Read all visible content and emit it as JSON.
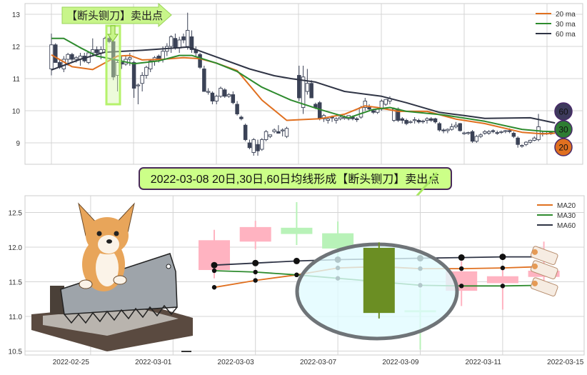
{
  "chart_data": [
    {
      "type": "candlestick",
      "panel": "top",
      "yticks": [
        9,
        10,
        11,
        12,
        13
      ],
      "ylim": [
        8.45,
        13.3
      ],
      "grid": true,
      "legend": "top-right",
      "colors": {
        "down": "#3b4256",
        "up_fill": "#ffffff",
        "up_edge": "#3b4256"
      },
      "candles": [
        [
          11.3,
          12.4,
          11.1,
          12.05
        ],
        [
          12.05,
          12.1,
          11.5,
          11.5
        ],
        [
          11.5,
          11.6,
          11.3,
          11.35
        ],
        [
          11.3,
          11.7,
          11.2,
          11.6
        ],
        [
          11.6,
          11.8,
          11.4,
          11.75
        ],
        [
          11.75,
          11.8,
          11.5,
          11.6
        ],
        [
          11.6,
          11.7,
          11.5,
          11.65
        ],
        [
          11.6,
          11.8,
          11.4,
          11.7
        ],
        [
          11.7,
          11.8,
          11.5,
          11.55
        ],
        [
          11.5,
          11.8,
          11.45,
          11.8
        ],
        [
          11.8,
          12.25,
          11.7,
          11.9
        ],
        [
          11.9,
          12.0,
          11.7,
          11.8
        ],
        [
          11.8,
          12.0,
          11.6,
          11.9
        ],
        [
          11.9,
          12.3,
          11.85,
          12.25
        ],
        [
          12.25,
          12.3,
          12.1,
          12.15
        ],
        [
          12.15,
          12.2,
          10.95,
          11.05
        ],
        [
          11.1,
          11.6,
          10.6,
          11.5
        ],
        [
          11.5,
          11.7,
          11.3,
          11.45
        ],
        [
          11.45,
          11.7,
          11.4,
          11.6
        ],
        [
          11.6,
          11.8,
          11.4,
          11.65
        ],
        [
          11.5,
          11.55,
          10.4,
          10.7
        ],
        [
          10.78,
          10.85,
          10.2,
          10.8
        ],
        [
          10.85,
          11.2,
          10.6,
          11.1
        ],
        [
          11.1,
          11.4,
          11.0,
          11.35
        ],
        [
          11.3,
          11.6,
          11.2,
          11.55
        ],
        [
          11.55,
          11.7,
          11.4,
          11.65
        ],
        [
          11.7,
          11.75,
          11.5,
          11.6
        ],
        [
          11.6,
          12.0,
          11.5,
          11.85
        ],
        [
          11.85,
          12.1,
          11.7,
          12.0
        ],
        [
          12.0,
          12.35,
          11.8,
          12.3
        ],
        [
          12.25,
          12.4,
          11.9,
          11.95
        ],
        [
          11.95,
          12.3,
          11.8,
          12.2
        ],
        [
          12.3,
          12.4,
          12.1,
          12.2
        ],
        [
          12.0,
          13.05,
          11.9,
          12.5
        ],
        [
          12.3,
          12.5,
          11.8,
          11.9
        ],
        [
          11.9,
          12.0,
          11.7,
          11.8
        ],
        [
          11.75,
          11.8,
          11.3,
          11.35
        ],
        [
          11.3,
          11.4,
          10.6,
          10.6
        ],
        [
          10.6,
          10.7,
          10.5,
          10.6
        ],
        [
          10.55,
          10.6,
          10.2,
          10.3
        ],
        [
          10.3,
          10.5,
          10.2,
          10.45
        ],
        [
          10.45,
          10.75,
          10.4,
          10.7
        ],
        [
          10.65,
          10.7,
          10.4,
          10.45
        ],
        [
          10.45,
          10.55,
          10.4,
          10.5
        ],
        [
          10.5,
          10.6,
          10.2,
          10.25
        ],
        [
          10.2,
          10.3,
          9.85,
          9.9
        ],
        [
          9.8,
          9.85,
          9.7,
          9.75
        ],
        [
          9.55,
          9.6,
          9.05,
          9.1
        ],
        [
          9.0,
          9.1,
          8.8,
          8.85
        ],
        [
          8.7,
          9.15,
          8.6,
          9.1
        ],
        [
          8.95,
          9.1,
          8.6,
          8.75
        ],
        [
          8.8,
          9.15,
          8.75,
          9.1
        ],
        [
          9.1,
          9.4,
          9.05,
          9.35
        ],
        [
          9.2,
          9.25,
          9.15,
          9.25
        ],
        [
          9.35,
          9.45,
          9.3,
          9.4
        ],
        [
          9.35,
          9.55,
          9.3,
          9.3
        ],
        [
          9.4,
          9.45,
          9.2,
          9.4
        ],
        [
          9.2,
          9.5,
          9.15,
          9.45
        ],
        null,
        null,
        [
          11.1,
          11.4,
          10.3,
          10.4
        ],
        [
          10.1,
          11.4,
          9.9,
          11.05
        ],
        [
          10.6,
          11.3,
          10.5,
          10.85
        ],
        [
          10.85,
          10.95,
          10.4,
          10.4
        ],
        [
          10.2,
          10.25,
          10.05,
          10.1
        ],
        [
          10.25,
          10.3,
          9.7,
          9.75
        ],
        [
          9.75,
          9.9,
          9.65,
          9.85
        ],
        [
          9.7,
          9.8,
          9.6,
          9.75
        ],
        [
          9.8,
          9.85,
          9.65,
          9.78
        ],
        [
          9.7,
          9.8,
          9.6,
          9.75
        ],
        [
          9.75,
          9.85,
          9.7,
          9.8
        ],
        [
          9.76,
          9.85,
          9.72,
          9.79
        ],
        [
          9.75,
          9.85,
          9.7,
          9.85
        ],
        [
          9.8,
          9.85,
          9.7,
          9.75
        ],
        [
          9.75,
          9.8,
          9.65,
          9.72
        ],
        [
          9.8,
          10.15,
          9.75,
          10.1
        ],
        [
          10.1,
          10.4,
          10.0,
          10.3
        ],
        [
          10.1,
          10.2,
          10.0,
          10.05
        ],
        [
          10.0,
          10.05,
          9.9,
          9.95
        ],
        [
          9.95,
          10.1,
          9.9,
          10.05
        ],
        [
          10.05,
          10.35,
          10.0,
          10.3
        ],
        [
          10.2,
          10.35,
          10.15,
          10.35
        ],
        [
          10.3,
          10.45,
          10.2,
          10.38
        ],
        [
          9.7,
          10.1,
          9.65,
          10.05
        ],
        [
          10.05,
          10.1,
          9.65,
          9.7
        ],
        [
          9.75,
          9.8,
          9.6,
          9.7
        ],
        [
          9.7,
          9.75,
          9.55,
          9.6
        ],
        [
          9.63,
          9.7,
          9.6,
          9.66
        ],
        [
          9.7,
          9.8,
          9.6,
          9.72
        ],
        [
          9.7,
          9.75,
          9.6,
          9.65
        ],
        [
          9.66,
          9.72,
          9.6,
          9.68
        ],
        [
          9.7,
          9.8,
          9.6,
          9.75
        ],
        [
          9.75,
          9.8,
          9.65,
          9.7
        ],
        [
          9.75,
          9.78,
          9.6,
          9.65
        ],
        [
          9.6,
          9.65,
          9.35,
          9.4
        ],
        [
          9.4,
          9.45,
          9.3,
          9.38
        ],
        [
          9.38,
          9.45,
          9.3,
          9.42
        ],
        [
          9.42,
          9.6,
          9.38,
          9.5
        ],
        [
          9.5,
          9.65,
          9.45,
          9.55
        ],
        [
          9.6,
          9.62,
          9.35,
          9.38
        ],
        [
          9.3,
          9.35,
          9.25,
          9.31
        ],
        [
          9.3,
          9.35,
          9.25,
          9.32
        ],
        [
          9.35,
          9.4,
          9.0,
          9.05
        ],
        [
          9.05,
          9.25,
          9.0,
          9.2
        ],
        [
          9.2,
          9.3,
          9.15,
          9.25
        ],
        [
          9.3,
          9.4,
          9.25,
          9.35
        ],
        [
          9.3,
          9.4,
          9.25,
          9.35
        ],
        [
          9.38,
          9.42,
          9.3,
          9.35
        ],
        [
          9.32,
          9.38,
          9.25,
          9.3
        ],
        [
          9.33,
          9.38,
          9.28,
          9.35
        ],
        [
          9.36,
          9.4,
          9.3,
          9.38
        ],
        [
          9.38,
          9.45,
          9.3,
          9.35
        ],
        [
          9.3,
          9.35,
          9.15,
          9.2
        ],
        [
          9.15,
          9.2,
          8.85,
          8.95
        ],
        [
          8.9,
          8.95,
          8.85,
          8.92
        ],
        [
          8.95,
          9.05,
          8.9,
          9.02
        ],
        [
          9.02,
          9.1,
          8.98,
          9.08
        ],
        [
          9.08,
          9.2,
          9.05,
          9.15
        ],
        [
          9.1,
          9.9,
          9.05,
          9.5
        ],
        [
          9.3,
          9.35,
          9.2,
          9.3
        ],
        [
          9.3,
          9.35,
          9.25,
          9.3
        ],
        [
          9.28,
          9.35,
          9.25,
          9.32
        ]
      ],
      "series": [
        {
          "name": "20 ma",
          "color": "#e07020",
          "points": [
            [
              0,
              11.74
            ],
            [
              5,
              11.37
            ],
            [
              10,
              11.28
            ],
            [
              16,
              11.7
            ],
            [
              19,
              11.72
            ],
            [
              22,
              11.58
            ],
            [
              27,
              11.6
            ],
            [
              32,
              11.65
            ],
            [
              36,
              11.62
            ],
            [
              40,
              11.48
            ],
            [
              45,
              11.25
            ],
            [
              51,
              10.33
            ],
            [
              57,
              9.7
            ],
            [
              60,
              9.72
            ],
            [
              65,
              9.75
            ],
            [
              71,
              9.89
            ],
            [
              76,
              10.15
            ],
            [
              79,
              10.1
            ],
            [
              84,
              9.98
            ],
            [
              91,
              9.98
            ],
            [
              98,
              9.74
            ],
            [
              105,
              9.6
            ],
            [
              114,
              9.33
            ],
            [
              119,
              9.28
            ],
            [
              122,
              9.3
            ]
          ]
        },
        {
          "name": "30 ma",
          "color": "#2e8b2e",
          "points": [
            [
              0,
              12.25
            ],
            [
              3,
              12.25
            ],
            [
              7,
              11.96
            ],
            [
              11,
              11.7
            ],
            [
              15,
              11.6
            ],
            [
              20,
              11.46
            ],
            [
              26,
              11.55
            ],
            [
              31,
              11.72
            ],
            [
              34,
              11.72
            ],
            [
              40,
              11.48
            ],
            [
              45,
              11.22
            ],
            [
              51,
              10.73
            ],
            [
              58,
              10.33
            ],
            [
              65,
              10.04
            ],
            [
              72,
              9.78
            ],
            [
              78,
              10.04
            ],
            [
              82,
              10.1
            ],
            [
              86,
              9.98
            ],
            [
              95,
              9.87
            ],
            [
              105,
              9.67
            ],
            [
              114,
              9.42
            ],
            [
              119,
              9.36
            ],
            [
              122,
              9.35
            ]
          ]
        },
        {
          "name": "60 ma",
          "color": "#2f3445",
          "points": [
            [
              0,
              11.27
            ],
            [
              7,
              11.6
            ],
            [
              13,
              11.82
            ],
            [
              22,
              11.88
            ],
            [
              33,
              11.98
            ],
            [
              34,
              11.95
            ],
            [
              40,
              11.67
            ],
            [
              48,
              11.3
            ],
            [
              54,
              11.09
            ],
            [
              58,
              11.0
            ],
            [
              64,
              10.89
            ],
            [
              71,
              10.6
            ],
            [
              80,
              10.45
            ],
            [
              86,
              10.25
            ],
            [
              94,
              9.95
            ],
            [
              100,
              9.85
            ],
            [
              105,
              9.76
            ],
            [
              116,
              9.78
            ],
            [
              122,
              9.62
            ]
          ]
        }
      ],
      "end_badges": [
        {
          "label": "60",
          "color": "#3d3a5c"
        },
        {
          "label": "30",
          "color": "#2e7d32"
        },
        {
          "label": "20",
          "color": "#e07020"
        }
      ]
    },
    {
      "type": "candlestick",
      "panel": "bottom",
      "yticks": [
        10.5,
        11.0,
        11.5,
        12.0,
        12.5
      ],
      "ylim": [
        10.45,
        12.75
      ],
      "grid": true,
      "legend": "top-right",
      "xticks": [
        "2022-02-25",
        "2022-03-01",
        "2022-03-03",
        "2022-03-07",
        "2022-03-09",
        "2022-03-11",
        "2022-03-15"
      ],
      "dates": [
        "2022-03-02",
        "2022-03-03",
        "2022-03-04",
        "2022-03-07",
        "2022-03-08",
        "2022-03-09",
        "2022-03-10",
        "2022-03-11",
        "2022-03-14"
      ],
      "candles": [
        {
          "o": 11.67,
          "h": 12.25,
          "l": 11.55,
          "c": 12.1,
          "color": "#ffb3c1"
        },
        {
          "o": 12.08,
          "h": 12.38,
          "l": 11.97,
          "c": 12.29,
          "color": "#ffb3c1"
        },
        {
          "o": 12.28,
          "h": 12.65,
          "l": 12.03,
          "c": 12.19,
          "color": "#b8f2b8"
        },
        {
          "o": 12.2,
          "h": 12.37,
          "l": 11.8,
          "c": 11.98,
          "color": "#b8f2b8"
        },
        {
          "o": 11.99,
          "h": 12.07,
          "l": 10.97,
          "c": 11.05,
          "color": "#6b8e23"
        },
        {
          "o": 11.09,
          "h": 11.4,
          "l": 10.52,
          "c": 11.07,
          "color": "#b8f2b8"
        },
        {
          "o": 11.37,
          "h": 11.8,
          "l": 11.15,
          "c": 11.65,
          "color": "#ffb3c1"
        },
        {
          "o": 11.48,
          "h": 11.7,
          "l": 11.1,
          "c": 11.58,
          "color": "#ffb3c1"
        },
        {
          "o": 11.57,
          "h": 12.08,
          "l": 11.5,
          "c": 11.66,
          "color": "#ffb3c1"
        }
      ],
      "series": [
        {
          "name": "MA20",
          "color": "#e07020",
          "values": [
            11.42,
            11.52,
            11.6,
            11.7,
            11.72,
            11.69,
            11.69,
            11.7,
            11.72
          ]
        },
        {
          "name": "MA30",
          "color": "#2e8b2e",
          "values": [
            11.66,
            11.64,
            11.6,
            11.55,
            11.5,
            11.45,
            11.44,
            11.44,
            11.45
          ]
        },
        {
          "name": "MA60",
          "color": "#2f3445",
          "values": [
            11.74,
            11.77,
            11.8,
            11.82,
            11.83,
            11.84,
            11.85,
            11.86,
            11.86
          ]
        }
      ]
    }
  ],
  "annotations": {
    "top_signal_label": "【断头铡刀】卖出点",
    "middle_banner": "2022-03-08 20日,30日,60日均线形成【断头铡刀】卖出点",
    "banner_color": "#ccff88",
    "highlight_color": "#b5f26b"
  }
}
